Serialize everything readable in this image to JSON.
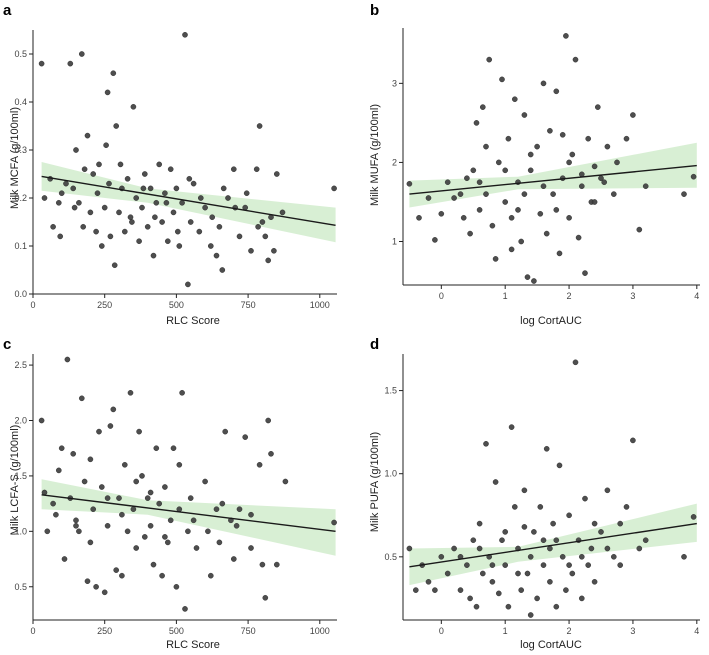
{
  "chart_data": [
    {
      "id": "a",
      "type": "scatter",
      "panel_label": "a",
      "xlabel": "RLC Score",
      "ylabel": "Milk MCFA (g/100ml)",
      "xlim": [
        0,
        1060
      ],
      "ylim": [
        0,
        0.55
      ],
      "xticks": [
        0,
        250,
        500,
        750,
        1000
      ],
      "yticks": [
        0.0,
        0.1,
        0.2,
        0.3,
        0.4,
        0.5
      ],
      "ytick_format": 1,
      "fit": {
        "x0": 30,
        "y0": 0.245,
        "x1": 1055,
        "y1": 0.143
      },
      "ci": {
        "x0": 30,
        "lo0": 0.215,
        "hi0": 0.275,
        "xm": 400,
        "lom": 0.19,
        "him": 0.22,
        "x1": 1055,
        "lo1": 0.108,
        "hi1": 0.18
      },
      "points": [
        [
          30,
          0.48
        ],
        [
          40,
          0.2
        ],
        [
          60,
          0.24
        ],
        [
          70,
          0.14
        ],
        [
          90,
          0.19
        ],
        [
          100,
          0.21
        ],
        [
          115,
          0.23
        ],
        [
          130,
          0.48
        ],
        [
          140,
          0.22
        ],
        [
          150,
          0.3
        ],
        [
          160,
          0.19
        ],
        [
          170,
          0.5
        ],
        [
          175,
          0.14
        ],
        [
          190,
          0.33
        ],
        [
          200,
          0.17
        ],
        [
          210,
          0.25
        ],
        [
          220,
          0.13
        ],
        [
          230,
          0.27
        ],
        [
          240,
          0.1
        ],
        [
          250,
          0.18
        ],
        [
          255,
          0.31
        ],
        [
          260,
          0.42
        ],
        [
          270,
          0.12
        ],
        [
          280,
          0.46
        ],
        [
          285,
          0.06
        ],
        [
          290,
          0.35
        ],
        [
          300,
          0.17
        ],
        [
          310,
          0.22
        ],
        [
          320,
          0.13
        ],
        [
          330,
          0.24
        ],
        [
          340,
          0.16
        ],
        [
          350,
          0.39
        ],
        [
          360,
          0.2
        ],
        [
          370,
          0.11
        ],
        [
          380,
          0.18
        ],
        [
          390,
          0.25
        ],
        [
          400,
          0.14
        ],
        [
          410,
          0.22
        ],
        [
          420,
          0.08
        ],
        [
          430,
          0.19
        ],
        [
          440,
          0.27
        ],
        [
          450,
          0.15
        ],
        [
          460,
          0.21
        ],
        [
          470,
          0.11
        ],
        [
          480,
          0.26
        ],
        [
          490,
          0.17
        ],
        [
          500,
          0.22
        ],
        [
          510,
          0.1
        ],
        [
          520,
          0.19
        ],
        [
          530,
          0.54
        ],
        [
          540,
          0.02
        ],
        [
          550,
          0.15
        ],
        [
          560,
          0.23
        ],
        [
          580,
          0.13
        ],
        [
          600,
          0.18
        ],
        [
          620,
          0.1
        ],
        [
          640,
          0.08
        ],
        [
          650,
          0.14
        ],
        [
          660,
          0.05
        ],
        [
          680,
          0.2
        ],
        [
          700,
          0.26
        ],
        [
          720,
          0.12
        ],
        [
          740,
          0.18
        ],
        [
          760,
          0.09
        ],
        [
          780,
          0.26
        ],
        [
          790,
          0.35
        ],
        [
          800,
          0.15
        ],
        [
          810,
          0.12
        ],
        [
          820,
          0.07
        ],
        [
          830,
          0.16
        ],
        [
          840,
          0.09
        ],
        [
          850,
          0.25
        ],
        [
          870,
          0.17
        ],
        [
          1050,
          0.22
        ],
        [
          95,
          0.12
        ],
        [
          145,
          0.18
        ],
        [
          180,
          0.26
        ],
        [
          225,
          0.21
        ],
        [
          265,
          0.23
        ],
        [
          305,
          0.27
        ],
        [
          345,
          0.15
        ],
        [
          385,
          0.22
        ],
        [
          425,
          0.16
        ],
        [
          465,
          0.19
        ],
        [
          505,
          0.13
        ],
        [
          545,
          0.24
        ],
        [
          585,
          0.2
        ],
        [
          625,
          0.16
        ],
        [
          665,
          0.22
        ],
        [
          705,
          0.18
        ],
        [
          745,
          0.21
        ],
        [
          785,
          0.14
        ]
      ]
    },
    {
      "id": "b",
      "type": "scatter",
      "panel_label": "b",
      "xlabel": "log CortAUC",
      "ylabel": "Milk MUFA (g/100ml)",
      "xlim": [
        -0.6,
        4.05
      ],
      "ylim": [
        0.45,
        3.7
      ],
      "xticks": [
        0,
        1,
        2,
        3,
        4
      ],
      "yticks": [
        1,
        2,
        3
      ],
      "ytick_format": 0,
      "fit": {
        "x0": -0.5,
        "y0": 1.6,
        "x1": 4.0,
        "y1": 1.96
      },
      "ci": {
        "x0": -0.5,
        "lo0": 1.43,
        "hi0": 1.77,
        "xm": 1.2,
        "lom": 1.66,
        "him": 1.82,
        "x1": 4.0,
        "lo1": 1.68,
        "hi1": 2.25
      },
      "points": [
        [
          -0.5,
          1.73
        ],
        [
          -0.35,
          1.3
        ],
        [
          -0.2,
          1.55
        ],
        [
          -0.1,
          1.02
        ],
        [
          0.0,
          1.35
        ],
        [
          0.1,
          1.75
        ],
        [
          0.2,
          1.55
        ],
        [
          0.3,
          1.6
        ],
        [
          0.35,
          1.3
        ],
        [
          0.4,
          1.8
        ],
        [
          0.45,
          1.1
        ],
        [
          0.5,
          1.9
        ],
        [
          0.55,
          2.5
        ],
        [
          0.6,
          1.4
        ],
        [
          0.65,
          2.7
        ],
        [
          0.7,
          1.6
        ],
        [
          0.75,
          3.3
        ],
        [
          0.8,
          1.2
        ],
        [
          0.85,
          0.78
        ],
        [
          0.9,
          2.0
        ],
        [
          0.95,
          3.05
        ],
        [
          1.0,
          1.5
        ],
        [
          1.05,
          2.3
        ],
        [
          1.1,
          0.9
        ],
        [
          1.15,
          2.8
        ],
        [
          1.2,
          1.75
        ],
        [
          1.25,
          1.0
        ],
        [
          1.3,
          2.6
        ],
        [
          1.35,
          0.55
        ],
        [
          1.4,
          1.9
        ],
        [
          1.45,
          0.5
        ],
        [
          1.5,
          2.2
        ],
        [
          1.55,
          1.35
        ],
        [
          1.6,
          3.0
        ],
        [
          1.65,
          1.1
        ],
        [
          1.7,
          2.4
        ],
        [
          1.75,
          1.6
        ],
        [
          1.8,
          2.9
        ],
        [
          1.85,
          0.85
        ],
        [
          1.9,
          1.8
        ],
        [
          1.95,
          3.6
        ],
        [
          2.0,
          1.3
        ],
        [
          2.05,
          2.1
        ],
        [
          2.1,
          3.3
        ],
        [
          2.15,
          1.05
        ],
        [
          2.2,
          1.7
        ],
        [
          2.25,
          0.6
        ],
        [
          2.3,
          2.3
        ],
        [
          2.35,
          1.5
        ],
        [
          2.4,
          1.95
        ],
        [
          2.45,
          2.7
        ],
        [
          2.5,
          1.8
        ],
        [
          2.6,
          2.2
        ],
        [
          2.7,
          1.6
        ],
        [
          2.75,
          2.0
        ],
        [
          2.9,
          2.3
        ],
        [
          3.0,
          2.6
        ],
        [
          3.1,
          1.15
        ],
        [
          3.2,
          1.7
        ],
        [
          3.8,
          1.6
        ],
        [
          3.95,
          1.82
        ],
        [
          0.7,
          2.2
        ],
        [
          1.2,
          1.4
        ],
        [
          1.6,
          1.7
        ],
        [
          2.0,
          2.0
        ],
        [
          2.4,
          1.5
        ],
        [
          1.0,
          1.9
        ],
        [
          1.4,
          2.1
        ],
        [
          1.8,
          1.4
        ],
        [
          2.2,
          1.85
        ],
        [
          0.6,
          1.75
        ],
        [
          1.3,
          1.6
        ],
        [
          1.9,
          2.35
        ],
        [
          2.55,
          1.75
        ],
        [
          1.1,
          1.3
        ]
      ]
    },
    {
      "id": "c",
      "type": "scatter",
      "panel_label": "c",
      "xlabel": "RLC Score",
      "ylabel": "Milk LCFA-S (g/100ml)",
      "xlim": [
        0,
        1060
      ],
      "ylim": [
        0.2,
        2.6
      ],
      "xticks": [
        0,
        250,
        500,
        750,
        1000
      ],
      "yticks": [
        0.5,
        1.0,
        1.5,
        2.0,
        2.5
      ],
      "ytick_format": 1,
      "fit": {
        "x0": 30,
        "y0": 1.33,
        "x1": 1055,
        "y1": 1.0
      },
      "ci": {
        "x0": 30,
        "lo0": 1.2,
        "hi0": 1.47,
        "xm": 400,
        "lom": 1.15,
        "him": 1.28,
        "x1": 1055,
        "lo1": 0.78,
        "hi1": 1.2
      },
      "points": [
        [
          30,
          2.0
        ],
        [
          40,
          1.35
        ],
        [
          50,
          1.0
        ],
        [
          70,
          1.25
        ],
        [
          80,
          1.15
        ],
        [
          90,
          1.55
        ],
        [
          100,
          1.75
        ],
        [
          110,
          0.75
        ],
        [
          120,
          2.55
        ],
        [
          130,
          1.3
        ],
        [
          140,
          1.7
        ],
        [
          150,
          1.1
        ],
        [
          160,
          1.0
        ],
        [
          170,
          2.2
        ],
        [
          180,
          1.45
        ],
        [
          190,
          0.55
        ],
        [
          200,
          1.65
        ],
        [
          210,
          1.2
        ],
        [
          220,
          0.5
        ],
        [
          230,
          1.9
        ],
        [
          240,
          1.4
        ],
        [
          250,
          0.45
        ],
        [
          260,
          1.05
        ],
        [
          270,
          1.95
        ],
        [
          280,
          2.1
        ],
        [
          290,
          0.65
        ],
        [
          300,
          1.3
        ],
        [
          310,
          0.6
        ],
        [
          320,
          1.6
        ],
        [
          330,
          1.0
        ],
        [
          340,
          2.25
        ],
        [
          350,
          1.2
        ],
        [
          360,
          0.85
        ],
        [
          370,
          1.9
        ],
        [
          380,
          1.5
        ],
        [
          390,
          0.95
        ],
        [
          400,
          1.3
        ],
        [
          410,
          1.05
        ],
        [
          420,
          0.7
        ],
        [
          430,
          1.75
        ],
        [
          440,
          1.25
        ],
        [
          450,
          0.6
        ],
        [
          460,
          1.4
        ],
        [
          470,
          0.9
        ],
        [
          480,
          1.1
        ],
        [
          490,
          1.75
        ],
        [
          500,
          0.5
        ],
        [
          510,
          1.6
        ],
        [
          520,
          2.25
        ],
        [
          530,
          0.3
        ],
        [
          540,
          1.0
        ],
        [
          550,
          1.3
        ],
        [
          570,
          0.85
        ],
        [
          600,
          1.45
        ],
        [
          620,
          0.6
        ],
        [
          640,
          1.2
        ],
        [
          650,
          0.9
        ],
        [
          670,
          1.9
        ],
        [
          690,
          1.1
        ],
        [
          700,
          0.75
        ],
        [
          720,
          1.2
        ],
        [
          740,
          1.85
        ],
        [
          760,
          0.85
        ],
        [
          790,
          1.6
        ],
        [
          800,
          0.7
        ],
        [
          810,
          0.4
        ],
        [
          820,
          2.0
        ],
        [
          830,
          1.7
        ],
        [
          850,
          0.7
        ],
        [
          880,
          1.45
        ],
        [
          1050,
          1.08
        ],
        [
          150,
          1.05
        ],
        [
          200,
          0.9
        ],
        [
          260,
          1.3
        ],
        [
          310,
          1.15
        ],
        [
          360,
          1.45
        ],
        [
          410,
          1.35
        ],
        [
          460,
          0.95
        ],
        [
          510,
          1.2
        ],
        [
          560,
          1.1
        ],
        [
          610,
          1.0
        ],
        [
          660,
          1.25
        ],
        [
          710,
          1.05
        ],
        [
          760,
          1.15
        ]
      ]
    },
    {
      "id": "d",
      "type": "scatter",
      "panel_label": "d",
      "xlabel": "log CortAUC",
      "ylabel": "Milk PUFA (g/100ml)",
      "xlim": [
        -0.6,
        4.05
      ],
      "ylim": [
        0.12,
        1.72
      ],
      "xticks": [
        0,
        1,
        2,
        3,
        4
      ],
      "yticks": [
        0.5,
        1.0,
        1.5
      ],
      "ytick_format": 1,
      "fit": {
        "x0": -0.5,
        "y0": 0.44,
        "x1": 4.0,
        "y1": 0.7
      },
      "ci": {
        "x0": -0.5,
        "lo0": 0.33,
        "hi0": 0.55,
        "xm": 1.2,
        "lom": 0.47,
        "him": 0.56,
        "x1": 4.0,
        "lo1": 0.59,
        "hi1": 0.82
      },
      "points": [
        [
          -0.5,
          0.55
        ],
        [
          -0.4,
          0.3
        ],
        [
          -0.3,
          0.45
        ],
        [
          -0.2,
          0.35
        ],
        [
          -0.1,
          0.3
        ],
        [
          0.0,
          0.5
        ],
        [
          0.1,
          0.4
        ],
        [
          0.2,
          0.55
        ],
        [
          0.3,
          0.3
        ],
        [
          0.4,
          0.45
        ],
        [
          0.45,
          0.25
        ],
        [
          0.5,
          0.6
        ],
        [
          0.55,
          0.2
        ],
        [
          0.6,
          0.7
        ],
        [
          0.65,
          0.4
        ],
        [
          0.7,
          1.18
        ],
        [
          0.75,
          0.5
        ],
        [
          0.8,
          0.35
        ],
        [
          0.85,
          0.95
        ],
        [
          0.9,
          0.28
        ],
        [
          0.95,
          0.6
        ],
        [
          1.0,
          0.45
        ],
        [
          1.05,
          0.2
        ],
        [
          1.1,
          1.28
        ],
        [
          1.15,
          0.8
        ],
        [
          1.2,
          0.55
        ],
        [
          1.25,
          0.3
        ],
        [
          1.3,
          0.9
        ],
        [
          1.35,
          0.4
        ],
        [
          1.4,
          0.15
        ],
        [
          1.45,
          0.65
        ],
        [
          1.5,
          0.25
        ],
        [
          1.55,
          0.8
        ],
        [
          1.6,
          0.45
        ],
        [
          1.65,
          1.15
        ],
        [
          1.7,
          0.35
        ],
        [
          1.75,
          0.7
        ],
        [
          1.8,
          0.2
        ],
        [
          1.85,
          1.05
        ],
        [
          1.9,
          0.5
        ],
        [
          1.95,
          0.3
        ],
        [
          2.0,
          0.75
        ],
        [
          2.05,
          0.4
        ],
        [
          2.1,
          1.67
        ],
        [
          2.15,
          0.6
        ],
        [
          2.2,
          0.25
        ],
        [
          2.25,
          0.85
        ],
        [
          2.3,
          0.45
        ],
        [
          2.35,
          0.55
        ],
        [
          2.4,
          0.35
        ],
        [
          2.5,
          0.65
        ],
        [
          2.6,
          0.9
        ],
        [
          2.7,
          0.5
        ],
        [
          2.8,
          0.7
        ],
        [
          2.9,
          0.8
        ],
        [
          3.0,
          1.2
        ],
        [
          3.1,
          0.55
        ],
        [
          3.2,
          0.6
        ],
        [
          3.8,
          0.5
        ],
        [
          3.95,
          0.74
        ],
        [
          0.6,
          0.55
        ],
        [
          1.0,
          0.65
        ],
        [
          1.4,
          0.5
        ],
        [
          1.8,
          0.6
        ],
        [
          2.2,
          0.5
        ],
        [
          2.6,
          0.55
        ],
        [
          0.8,
          0.45
        ],
        [
          1.2,
          0.4
        ],
        [
          1.6,
          0.6
        ],
        [
          2.0,
          0.45
        ],
        [
          2.4,
          0.7
        ],
        [
          0.3,
          0.5
        ],
        [
          1.7,
          0.55
        ],
        [
          2.8,
          0.45
        ],
        [
          1.3,
          0.68
        ]
      ]
    }
  ]
}
